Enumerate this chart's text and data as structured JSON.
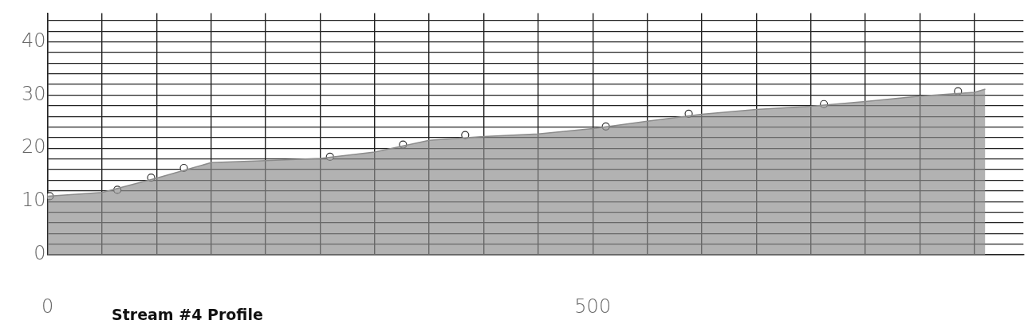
{
  "chart_data": {
    "type": "area",
    "title": "Stream #4 Profile",
    "xlim": [
      0,
      895
    ],
    "ylim": [
      0,
      45.4
    ],
    "xticks": [
      0,
      {
        "value": 50,
        "label": null
      },
      {
        "value": 100,
        "label": null
      },
      {
        "value": 150,
        "label": null
      },
      {
        "value": 200,
        "label": null
      },
      {
        "value": 250,
        "label": null
      },
      {
        "value": 300,
        "label": null
      },
      {
        "value": 350,
        "label": null
      },
      {
        "value": 400,
        "label": null
      },
      {
        "value": 450,
        "label": null
      },
      500,
      {
        "value": 550,
        "label": null
      },
      {
        "value": 600,
        "label": null
      },
      {
        "value": 650,
        "label": null
      },
      {
        "value": 700,
        "label": null
      },
      {
        "value": 750,
        "label": null
      },
      {
        "value": 800,
        "label": null
      },
      {
        "value": 850,
        "label": null
      }
    ],
    "yticks": [
      0,
      {
        "value": 2,
        "label": null
      },
      {
        "value": 4,
        "label": null
      },
      {
        "value": 6,
        "label": null
      },
      {
        "value": 8,
        "label": null
      },
      10,
      {
        "value": 12,
        "label": null
      },
      {
        "value": 14,
        "label": null
      },
      {
        "value": 16,
        "label": null
      },
      {
        "value": 18,
        "label": null
      },
      20,
      {
        "value": 22,
        "label": null
      },
      {
        "value": 24,
        "label": null
      },
      {
        "value": 26,
        "label": null
      },
      {
        "value": 28,
        "label": null
      },
      30,
      {
        "value": 32,
        "label": null
      },
      {
        "value": 34,
        "label": null
      },
      {
        "value": 36,
        "label": null
      },
      {
        "value": 38,
        "label": null
      },
      40,
      {
        "value": 42,
        "label": null
      },
      {
        "value": 44,
        "label": null
      }
    ],
    "grid": true,
    "legend": false,
    "series": [
      {
        "color": "#8c8c8c",
        "x": [
          0,
          50,
          100,
          150,
          200,
          250,
          300,
          350,
          400,
          450,
          500,
          550,
          600,
          650,
          700,
          750,
          800,
          850,
          860
        ],
        "values": [
          11,
          11.7,
          14.4,
          17.3,
          17.7,
          18.1,
          19.3,
          21.5,
          22.2,
          22.7,
          23.7,
          25.1,
          26.4,
          27.3,
          27.9,
          28.8,
          29.8,
          30.5,
          31.1
        ]
      },
      {
        "type": "scatter",
        "color": "#333333",
        "marker": "circle",
        "x": [
          2,
          64,
          95,
          125,
          259,
          326,
          383,
          512,
          588,
          712,
          835
        ],
        "values": [
          11,
          12.2,
          14.5,
          16.3,
          18.4,
          20.7,
          22.5,
          24.1,
          26.5,
          28.3,
          30.7
        ]
      }
    ]
  }
}
